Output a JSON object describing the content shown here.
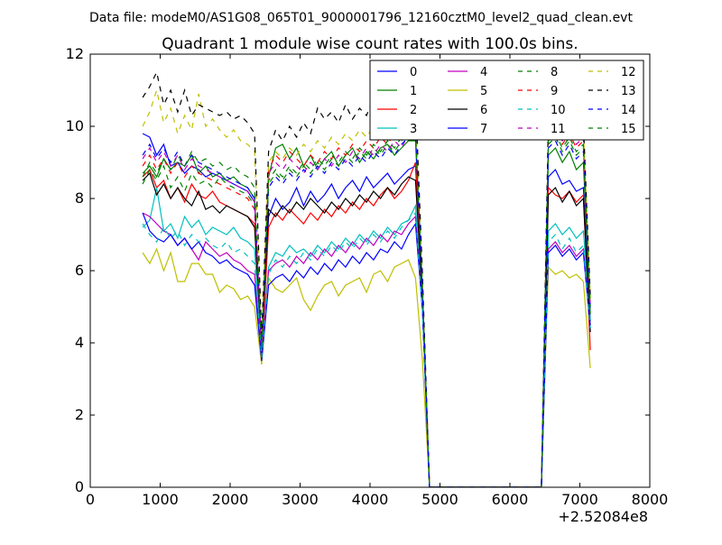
{
  "suptitle": "Data file: modeM0/AS1G08_065T01_9000001796_12160cztM0_level2_quad_clean.evt",
  "chart_data": {
    "type": "line",
    "title": "Quadrant 1 module wise count rates with 100.0s bins.",
    "xlabel": "",
    "ylabel": "",
    "x_offset_label": "+2.52084e8",
    "xlim": [
      0,
      8000
    ],
    "ylim": [
      0,
      12
    ],
    "xticks": [
      0,
      1000,
      2000,
      3000,
      4000,
      5000,
      6000,
      7000,
      8000
    ],
    "xtick_labels": [
      "0",
      "1000",
      "2000",
      "3000",
      "4000",
      "5000",
      "6000",
      "7000",
      "8000"
    ],
    "yticks": [
      0,
      2,
      4,
      6,
      8,
      10,
      12
    ],
    "ytick_labels": [
      "0",
      "2",
      "4",
      "6",
      "8",
      "10",
      "12"
    ],
    "grid": false,
    "legend_position": "top-right",
    "legend_columns": 4,
    "x": [
      750,
      850,
      950,
      1050,
      1150,
      1250,
      1350,
      1450,
      1550,
      1650,
      1750,
      1850,
      1950,
      2050,
      2150,
      2250,
      2350,
      2450,
      2550,
      2650,
      2750,
      2850,
      2950,
      3050,
      3150,
      3250,
      3350,
      3450,
      3550,
      3650,
      3750,
      3850,
      3950,
      4050,
      4150,
      4250,
      4350,
      4450,
      4550,
      4650,
      4750,
      4850,
      4950,
      5050,
      5150,
      5250,
      5350,
      5450,
      5550,
      5650,
      5750,
      5850,
      5950,
      6050,
      6150,
      6250,
      6350,
      6450,
      6550,
      6650,
      6750,
      6850,
      6950,
      7050,
      7150
    ],
    "series": [
      {
        "name": "0",
        "color": "#0000ff",
        "dash": "solid",
        "values": [
          9.8,
          9.7,
          9.2,
          9.5,
          8.9,
          9.0,
          8.7,
          8.9,
          8.8,
          8.6,
          8.7,
          8.6,
          8.5,
          8.4,
          8.3,
          8.2,
          7.9,
          3.6,
          7.5,
          8.0,
          7.7,
          7.9,
          8.3,
          7.8,
          8.2,
          7.9,
          8.1,
          8.4,
          8.0,
          8.3,
          8.5,
          8.2,
          8.6,
          8.3,
          8.5,
          8.7,
          8.4,
          8.6,
          8.8,
          8.9,
          5.2,
          0,
          0,
          0,
          0,
          0,
          0,
          0,
          0,
          0,
          0,
          0,
          0,
          0,
          0,
          0,
          0,
          0,
          8.6,
          8.8,
          8.4,
          8.5,
          8.2,
          8.3,
          4.6
        ]
      },
      {
        "name": "1",
        "color": "#008000",
        "dash": "solid",
        "values": [
          8.7,
          8.9,
          8.6,
          9.1,
          8.8,
          9.0,
          8.9,
          9.2,
          8.7,
          8.9,
          8.6,
          8.7,
          8.5,
          8.6,
          8.4,
          8.3,
          8.0,
          3.7,
          8.6,
          9.4,
          9.5,
          9.1,
          9.4,
          8.9,
          9.2,
          8.8,
          9.1,
          9.3,
          8.9,
          9.2,
          9.4,
          9.0,
          9.3,
          9.1,
          9.4,
          9.5,
          9.2,
          9.4,
          9.6,
          9.6,
          5.4,
          0,
          0,
          0,
          0,
          0,
          0,
          0,
          0,
          0,
          0,
          0,
          0,
          0,
          0,
          0,
          0,
          0,
          9.2,
          9.4,
          9.0,
          9.3,
          8.8,
          9.0,
          4.8
        ]
      },
      {
        "name": "2",
        "color": "#ff0000",
        "dash": "solid",
        "values": [
          8.6,
          8.8,
          8.3,
          8.5,
          8.0,
          8.3,
          7.9,
          8.4,
          8.1,
          8.0,
          8.2,
          7.9,
          7.8,
          7.7,
          7.6,
          7.5,
          7.3,
          3.6,
          7.2,
          7.6,
          7.4,
          7.7,
          7.5,
          7.3,
          7.6,
          7.4,
          7.7,
          7.5,
          7.8,
          7.6,
          7.9,
          7.7,
          8.0,
          7.8,
          8.1,
          8.3,
          8.0,
          8.2,
          8.5,
          9.0,
          5.3,
          0,
          0,
          0,
          0,
          0,
          0,
          0,
          0,
          0,
          0,
          0,
          0,
          0,
          0,
          0,
          0,
          0,
          8.3,
          8.1,
          8.0,
          8.2,
          7.9,
          8.1,
          3.8
        ]
      },
      {
        "name": "3",
        "color": "#00bfbf",
        "dash": "solid",
        "values": [
          7.2,
          7.4,
          8.3,
          7.1,
          7.3,
          6.9,
          7.5,
          7.2,
          7.4,
          7.0,
          7.2,
          7.1,
          7.0,
          7.2,
          6.9,
          6.8,
          6.6,
          3.6,
          6.1,
          6.5,
          6.4,
          6.7,
          6.5,
          6.6,
          6.4,
          6.7,
          6.5,
          6.8,
          6.6,
          6.9,
          6.7,
          7.0,
          6.8,
          7.1,
          6.9,
          7.2,
          7.0,
          7.3,
          7.4,
          7.8,
          5.0,
          0,
          0,
          0,
          0,
          0,
          0,
          0,
          0,
          0,
          0,
          0,
          0,
          0,
          0,
          0,
          0,
          0,
          7.1,
          7.3,
          7.0,
          7.2,
          6.9,
          7.1,
          4.6
        ]
      },
      {
        "name": "4",
        "color": "#bf00bf",
        "dash": "solid",
        "values": [
          7.6,
          7.5,
          7.3,
          7.1,
          7.0,
          6.7,
          6.9,
          6.6,
          6.3,
          6.8,
          6.6,
          6.4,
          6.5,
          6.3,
          6.2,
          6.0,
          5.9,
          3.7,
          6.0,
          6.2,
          6.3,
          6.1,
          6.4,
          6.2,
          6.5,
          6.3,
          6.6,
          6.4,
          6.7,
          6.5,
          6.8,
          6.6,
          6.9,
          6.7,
          7.0,
          6.8,
          7.1,
          7.0,
          7.3,
          7.5,
          5.0,
          0,
          0,
          0,
          0,
          0,
          0,
          0,
          0,
          0,
          0,
          0,
          0,
          0,
          0,
          0,
          0,
          0,
          6.6,
          6.8,
          6.5,
          6.7,
          6.4,
          6.6,
          4.5
        ]
      },
      {
        "name": "5",
        "color": "#bfbf00",
        "dash": "solid",
        "values": [
          6.5,
          6.2,
          6.6,
          6.0,
          6.5,
          5.7,
          5.7,
          6.2,
          6.2,
          5.9,
          5.9,
          5.4,
          5.6,
          5.5,
          5.2,
          5.3,
          5.0,
          3.4,
          5.8,
          5.5,
          5.4,
          5.6,
          5.8,
          5.2,
          4.9,
          5.3,
          5.6,
          5.7,
          5.3,
          5.6,
          5.7,
          5.8,
          5.4,
          5.9,
          6.0,
          5.7,
          6.1,
          6.2,
          6.3,
          5.8,
          3.5,
          0,
          0,
          0,
          0,
          0,
          0,
          0,
          0,
          0,
          0,
          0,
          0,
          0,
          0,
          0,
          0,
          0,
          6.1,
          5.9,
          6.0,
          5.8,
          5.9,
          5.7,
          3.3
        ]
      },
      {
        "name": "6",
        "color": "#000000",
        "dash": "solid",
        "values": [
          8.5,
          8.7,
          8.1,
          8.4,
          8.0,
          8.3,
          8.0,
          7.8,
          8.2,
          7.7,
          7.8,
          7.6,
          7.8,
          7.7,
          7.6,
          7.5,
          7.2,
          3.9,
          7.7,
          7.5,
          7.8,
          7.6,
          7.9,
          7.7,
          8.0,
          7.8,
          7.6,
          7.9,
          7.7,
          8.0,
          7.8,
          8.1,
          7.9,
          8.2,
          8.0,
          8.3,
          8.1,
          8.4,
          8.6,
          8.5,
          5.2,
          0,
          0,
          0,
          0,
          0,
          0,
          0,
          0,
          0,
          0,
          0,
          0,
          0,
          0,
          0,
          0,
          0,
          8.1,
          8.3,
          7.9,
          8.2,
          7.8,
          8.0,
          4.3
        ]
      },
      {
        "name": "7",
        "color": "#0000ff",
        "dash": "solid",
        "values": [
          7.6,
          7.1,
          6.9,
          6.8,
          7.0,
          6.7,
          6.9,
          6.6,
          6.8,
          6.5,
          6.4,
          6.2,
          6.3,
          6.1,
          6.0,
          5.9,
          5.6,
          3.5,
          5.6,
          5.8,
          5.9,
          5.7,
          6.0,
          5.8,
          6.1,
          5.9,
          6.2,
          6.0,
          6.3,
          6.1,
          6.4,
          6.2,
          6.5,
          6.3,
          6.6,
          6.5,
          6.8,
          6.6,
          7.0,
          7.3,
          4.9,
          0,
          0,
          0,
          0,
          0,
          0,
          0,
          0,
          0,
          0,
          0,
          0,
          0,
          0,
          0,
          0,
          0,
          6.5,
          6.7,
          6.4,
          6.6,
          6.3,
          6.5,
          4.4
        ]
      },
      {
        "name": "8",
        "color": "#008000",
        "dash": "dashed",
        "values": [
          8.4,
          8.8,
          8.5,
          8.9,
          8.3,
          8.6,
          8.2,
          8.7,
          8.4,
          8.5,
          8.3,
          8.6,
          8.4,
          8.3,
          8.2,
          8.1,
          7.8,
          3.8,
          8.4,
          8.7,
          8.5,
          8.8,
          8.6,
          8.9,
          8.7,
          9.0,
          8.8,
          9.1,
          8.9,
          9.2,
          9.0,
          9.3,
          9.1,
          9.4,
          9.2,
          9.5,
          9.3,
          9.6,
          9.8,
          9.7,
          5.5,
          0,
          0,
          0,
          0,
          0,
          0,
          0,
          0,
          0,
          0,
          0,
          0,
          0,
          0,
          0,
          0,
          0,
          9.5,
          9.7,
          9.3,
          9.6,
          9.2,
          9.4,
          5.0
        ]
      },
      {
        "name": "9",
        "color": "#ff0000",
        "dash": "dashed",
        "values": [
          8.9,
          9.2,
          8.8,
          9.1,
          8.7,
          9.0,
          8.6,
          8.9,
          8.7,
          8.6,
          8.5,
          8.4,
          8.3,
          8.2,
          8.1,
          8.0,
          7.7,
          3.9,
          8.8,
          9.2,
          9.0,
          9.3,
          9.1,
          8.9,
          9.2,
          9.0,
          9.3,
          9.1,
          9.4,
          9.2,
          9.5,
          9.3,
          9.6,
          9.4,
          9.7,
          9.5,
          9.8,
          9.6,
          9.9,
          10.0,
          5.6,
          0,
          0,
          0,
          0,
          0,
          0,
          0,
          0,
          0,
          0,
          0,
          0,
          0,
          0,
          0,
          0,
          0,
          9.7,
          9.9,
          9.5,
          9.8,
          9.4,
          9.6,
          5.0
        ]
      },
      {
        "name": "10",
        "color": "#00bfbf",
        "dash": "dashed",
        "values": [
          7.3,
          7.0,
          6.8,
          7.2,
          6.9,
          7.1,
          6.7,
          7.0,
          6.8,
          6.9,
          6.7,
          6.6,
          6.8,
          6.5,
          6.6,
          6.4,
          6.2,
          3.6,
          5.9,
          6.3,
          6.1,
          6.4,
          6.2,
          6.5,
          6.3,
          6.6,
          6.4,
          6.7,
          6.5,
          6.8,
          6.6,
          6.9,
          6.7,
          7.0,
          6.8,
          7.1,
          6.9,
          7.2,
          7.4,
          7.6,
          4.9,
          0,
          0,
          0,
          0,
          0,
          0,
          0,
          0,
          0,
          0,
          0,
          0,
          0,
          0,
          0,
          0,
          0,
          6.8,
          7.0,
          6.6,
          6.9,
          6.5,
          6.7,
          4.4
        ]
      },
      {
        "name": "11",
        "color": "#bf00bf",
        "dash": "dashed",
        "values": [
          9.1,
          9.4,
          9.0,
          9.3,
          8.9,
          9.2,
          8.8,
          9.1,
          8.9,
          8.8,
          8.7,
          8.6,
          8.5,
          8.4,
          8.3,
          8.2,
          7.9,
          3.9,
          8.7,
          9.0,
          8.8,
          9.1,
          8.9,
          8.7,
          9.0,
          8.8,
          9.1,
          8.9,
          9.2,
          9.0,
          9.3,
          9.1,
          9.4,
          9.2,
          9.5,
          9.3,
          9.6,
          9.4,
          9.8,
          9.9,
          5.5,
          0,
          0,
          0,
          0,
          0,
          0,
          0,
          0,
          0,
          0,
          0,
          0,
          0,
          0,
          0,
          0,
          0,
          9.8,
          10.0,
          9.6,
          9.9,
          9.5,
          9.7,
          5.0
        ]
      },
      {
        "name": "12",
        "color": "#bfbf00",
        "dash": "dashed",
        "values": [
          10.0,
          10.4,
          11.0,
          10.1,
          10.5,
          9.8,
          10.3,
          9.9,
          10.9,
          10.0,
          10.2,
          9.9,
          9.7,
          9.9,
          9.6,
          9.5,
          9.3,
          4.1,
          9.0,
          9.3,
          9.1,
          9.4,
          9.2,
          9.5,
          9.3,
          9.6,
          9.4,
          9.7,
          9.5,
          9.8,
          9.6,
          9.9,
          9.7,
          10.0,
          9.8,
          10.1,
          9.9,
          10.2,
          10.4,
          10.3,
          5.8,
          0,
          0,
          0,
          0,
          0,
          0,
          0,
          0,
          0,
          0,
          0,
          0,
          0,
          0,
          0,
          0,
          0,
          10.0,
          10.2,
          9.8,
          10.1,
          9.7,
          9.9,
          5.2
        ]
      },
      {
        "name": "13",
        "color": "#000000",
        "dash": "dashed",
        "values": [
          10.8,
          11.1,
          11.5,
          10.6,
          11.0,
          10.4,
          11.0,
          10.3,
          10.6,
          10.5,
          10.4,
          10.3,
          10.4,
          10.2,
          10.3,
          10.1,
          9.8,
          4.2,
          9.3,
          9.9,
          9.6,
          10.0,
          9.7,
          10.1,
          9.8,
          10.5,
          10.2,
          10.4,
          10.1,
          10.6,
          10.2,
          10.5,
          10.3,
          10.8,
          10.4,
          10.6,
          10.5,
          10.9,
          10.7,
          10.8,
          5.9,
          0,
          0,
          0,
          0,
          0,
          0,
          0,
          0,
          0,
          0,
          0,
          0,
          0,
          0,
          0,
          0,
          0,
          10.2,
          10.4,
          10.0,
          10.3,
          9.9,
          10.1,
          5.3
        ]
      },
      {
        "name": "14",
        "color": "#0000ff",
        "dash": "dashed",
        "values": [
          9.2,
          9.5,
          9.1,
          9.4,
          9.0,
          9.3,
          8.9,
          9.2,
          9.0,
          8.9,
          8.8,
          8.7,
          8.6,
          8.5,
          8.4,
          8.3,
          8.0,
          3.9,
          8.3,
          8.6,
          8.4,
          8.7,
          8.5,
          8.8,
          8.6,
          8.9,
          8.7,
          9.0,
          8.8,
          9.1,
          8.9,
          9.2,
          9.0,
          9.3,
          9.1,
          9.4,
          9.2,
          9.5,
          9.7,
          9.8,
          5.5,
          0,
          0,
          0,
          0,
          0,
          0,
          0,
          0,
          0,
          0,
          0,
          0,
          0,
          0,
          0,
          0,
          0,
          9.4,
          9.6,
          9.2,
          9.5,
          9.1,
          9.3,
          4.9
        ]
      },
      {
        "name": "15",
        "color": "#008000",
        "dash": "dashed",
        "values": [
          8.6,
          9.0,
          8.7,
          9.1,
          8.8,
          9.2,
          8.9,
          9.3,
          9.0,
          9.1,
          8.9,
          9.0,
          8.8,
          8.9,
          8.7,
          8.6,
          8.3,
          3.8,
          8.5,
          8.8,
          8.6,
          8.9,
          8.7,
          9.0,
          8.8,
          9.1,
          8.9,
          9.2,
          9.0,
          9.3,
          9.1,
          9.4,
          9.2,
          9.5,
          9.3,
          9.6,
          9.4,
          9.7,
          9.9,
          9.8,
          5.5,
          0,
          0,
          0,
          0,
          0,
          0,
          0,
          0,
          0,
          0,
          0,
          0,
          0,
          0,
          0,
          0,
          0,
          9.6,
          9.8,
          9.4,
          9.7,
          9.3,
          9.5,
          5.0
        ]
      }
    ]
  }
}
